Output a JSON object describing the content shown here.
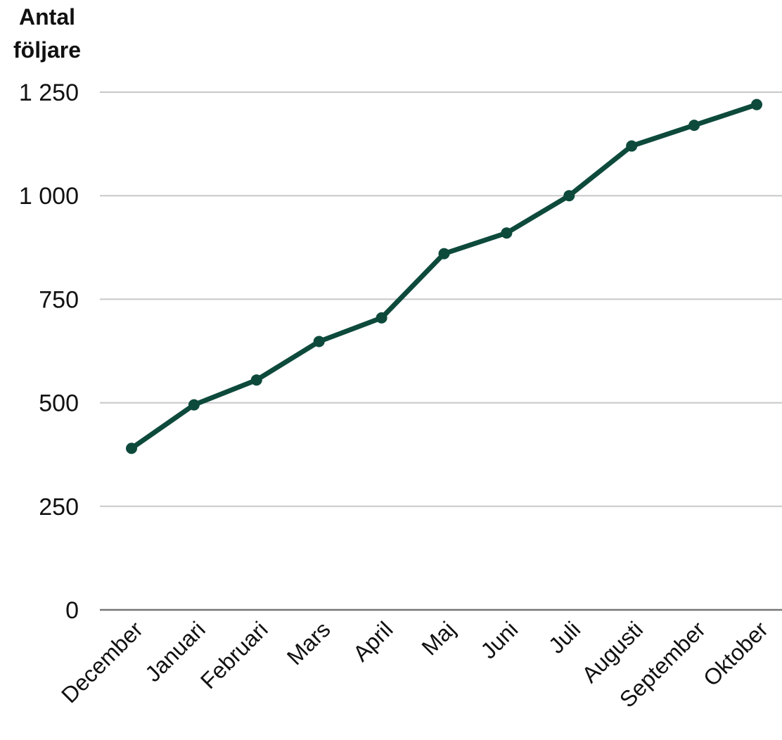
{
  "chart_data": {
    "type": "line",
    "ylabel_lines": [
      "Antal",
      "följare"
    ],
    "categories": [
      "December",
      "Januari",
      "Februari",
      "Mars",
      "April",
      "Maj",
      "Juni",
      "Juli",
      "Augusti",
      "September",
      "Oktober"
    ],
    "series": [
      {
        "values": [
          390,
          495,
          555,
          648,
          705,
          860,
          910,
          1000,
          1120,
          1170,
          1220
        ],
        "color": "#0d4a3c"
      }
    ],
    "y_ticks": [
      0,
      250,
      500,
      750,
      1000,
      1250
    ],
    "y_tick_labels": [
      "0",
      "250",
      "500",
      "750",
      "1 000",
      "1 250"
    ],
    "ylim": [
      0,
      1250
    ],
    "grid": true,
    "legend": "none"
  }
}
